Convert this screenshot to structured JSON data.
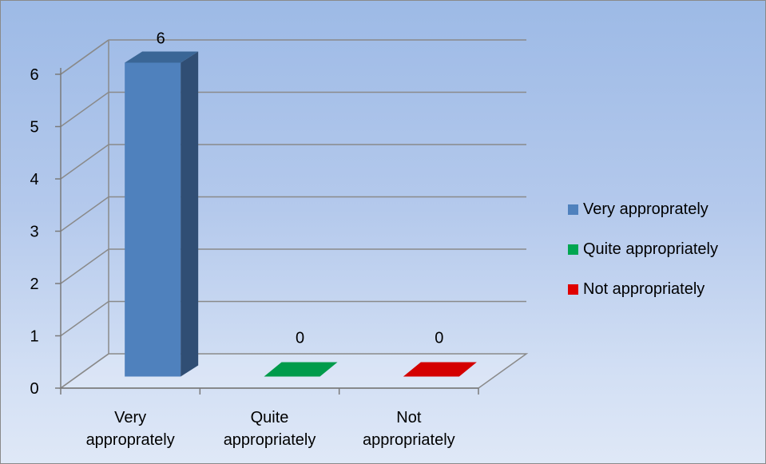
{
  "chart_data": {
    "type": "bar",
    "title": "",
    "xlabel": "",
    "ylabel": "",
    "categories": [
      "Very\napproprately",
      "Quite\nappropriately",
      "Not\nappropriately"
    ],
    "values": [
      6,
      0,
      0
    ],
    "data_labels": [
      "6",
      "0",
      "0"
    ],
    "ylim": [
      0,
      6
    ],
    "yticks": [
      "0",
      "1",
      "2",
      "3",
      "4",
      "5",
      "6"
    ],
    "grid": true,
    "legend_position": "right",
    "legend": [
      {
        "label": "Very approprately",
        "color": "#4f81bd"
      },
      {
        "label": "Quite appropriately",
        "color": "#00a651"
      },
      {
        "label": "Not appropriately",
        "color": "#e00000"
      }
    ],
    "colors": [
      "#4f81bd",
      "#009b4b",
      "#d40000"
    ]
  }
}
